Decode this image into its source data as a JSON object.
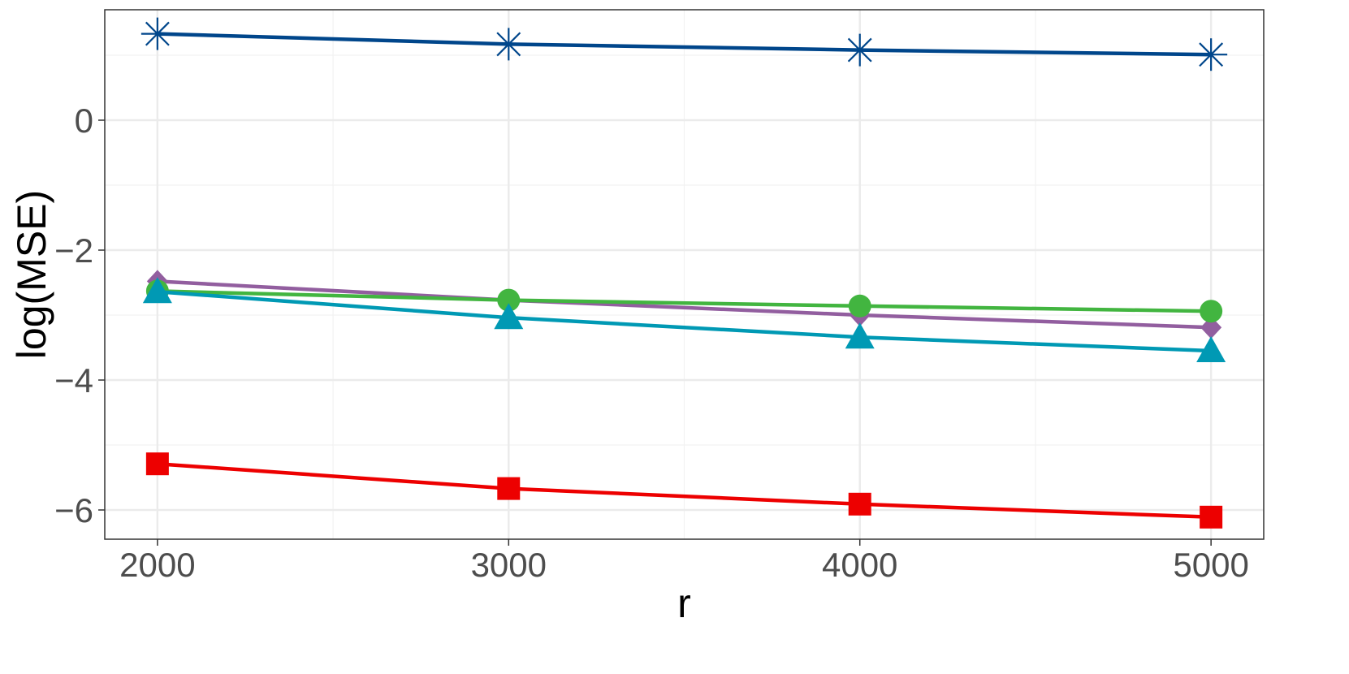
{
  "chart_data": {
    "type": "line",
    "title": "",
    "xlabel": "r",
    "ylabel": "log(MSE)",
    "x": [
      2000,
      3000,
      4000,
      5000
    ],
    "xlim": [
      1850,
      5150
    ],
    "ylim": [
      -6.45,
      1.7
    ],
    "x_ticks": [
      2000,
      3000,
      4000,
      5000
    ],
    "x_tick_labels": [
      "2000",
      "3000",
      "4000",
      "5000"
    ],
    "y_ticks": [
      -6,
      -4,
      -2,
      0
    ],
    "y_tick_labels": [
      "−6",
      "−4",
      "−2",
      "0"
    ],
    "grid": true,
    "legend": "none",
    "series": [
      {
        "marker": "asterisk",
        "color": "#00468B",
        "values": [
          1.33,
          1.17,
          1.08,
          1.01
        ]
      },
      {
        "marker": "diamond",
        "color": "#925E9F",
        "values": [
          -2.48,
          -2.77,
          -3.0,
          -3.19
        ]
      },
      {
        "marker": "circle",
        "color": "#42B540",
        "values": [
          -2.63,
          -2.77,
          -2.86,
          -2.94
        ]
      },
      {
        "marker": "triangle",
        "color": "#0099B4",
        "values": [
          -2.64,
          -3.04,
          -3.34,
          -3.55
        ]
      },
      {
        "marker": "square",
        "color": "#ED0000",
        "values": [
          -5.29,
          -5.67,
          -5.91,
          -6.11
        ]
      }
    ]
  }
}
